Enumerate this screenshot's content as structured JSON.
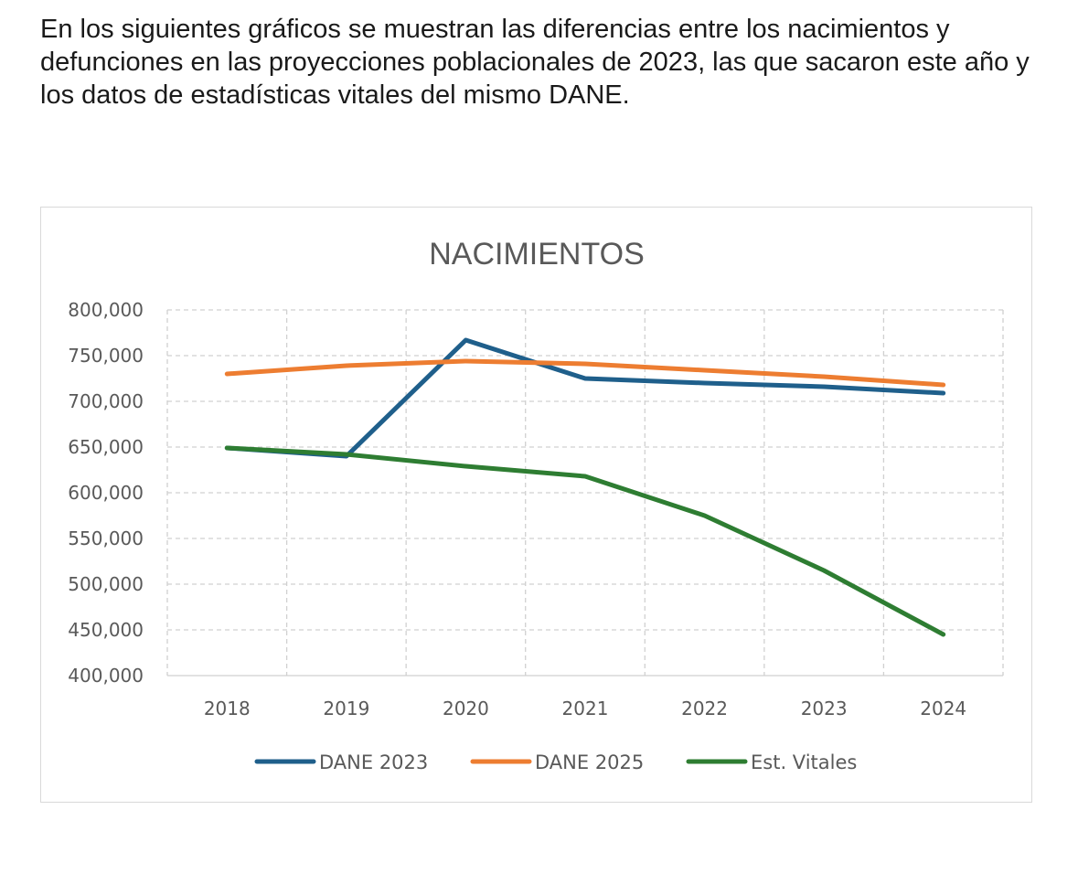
{
  "intro_text": "En los siguientes gráficos se muestran las diferencias entre los nacimientos y defunciones en las proyecciones poblacionales de 2023, las que sacaron este año y los datos de estadísticas vitales del mismo DANE.",
  "chart_data": {
    "type": "line",
    "title": "NACIMIENTOS",
    "xlabel": "",
    "ylabel": "",
    "categories": [
      "2018",
      "2019",
      "2020",
      "2021",
      "2022",
      "2023",
      "2024"
    ],
    "ylim": [
      400000,
      800000
    ],
    "yticks": [
      400000,
      450000,
      500000,
      550000,
      600000,
      650000,
      700000,
      750000,
      800000
    ],
    "ytick_labels": [
      "400,000",
      "450,000",
      "500,000",
      "550,000",
      "600,000",
      "650,000",
      "700,000",
      "750,000",
      "800,000"
    ],
    "grid": "dashed, both axes",
    "legend_position": "bottom",
    "series": [
      {
        "name": "DANE 2023",
        "color": "#1f5f8b",
        "values": [
          649000,
          640000,
          767000,
          725000,
          720000,
          716000,
          709000
        ]
      },
      {
        "name": "DANE 2025",
        "color": "#ed7d31",
        "values": [
          730000,
          739000,
          744000,
          741000,
          734000,
          727000,
          718000
        ]
      },
      {
        "name": "Est. Vitales",
        "color": "#2e7d32",
        "values": [
          649000,
          642000,
          629000,
          618000,
          575000,
          515000,
          445000
        ]
      }
    ]
  }
}
